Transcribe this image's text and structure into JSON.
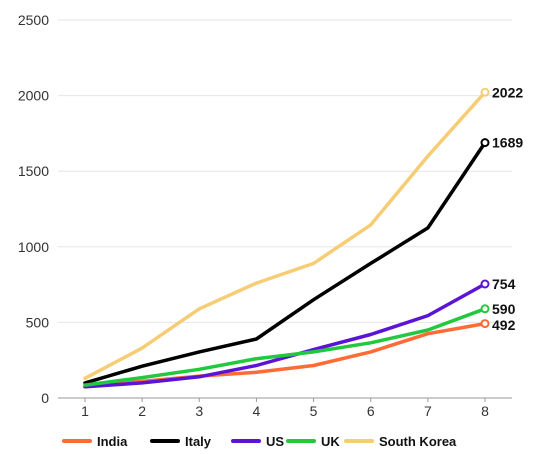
{
  "chart_data": {
    "type": "line",
    "title": "",
    "xlabel": "",
    "ylabel": "",
    "x": [
      1,
      2,
      3,
      4,
      5,
      6,
      7,
      8
    ],
    "xticks": [
      "1",
      "2",
      "3",
      "4",
      "5",
      "6",
      "7",
      "8"
    ],
    "yticks": [
      "0",
      "500",
      "1000",
      "1500",
      "2000",
      "2500"
    ],
    "ylim": [
      0,
      2500
    ],
    "grid": "horizontal",
    "legend_position": "bottom",
    "series": [
      {
        "name": "India",
        "color": "#ff6b35",
        "values": [
          75,
          110,
          145,
          170,
          215,
          305,
          425,
          492
        ],
        "end_label": "492"
      },
      {
        "name": "Italy",
        "color": "#000000",
        "values": [
          100,
          210,
          305,
          390,
          650,
          890,
          1125,
          1689
        ],
        "end_label": "1689"
      },
      {
        "name": "US",
        "color": "#5b14d6",
        "values": [
          75,
          100,
          140,
          215,
          320,
          420,
          545,
          754
        ],
        "end_label": "754"
      },
      {
        "name": "UK",
        "color": "#22c93e",
        "values": [
          85,
          135,
          190,
          260,
          305,
          365,
          450,
          590
        ],
        "end_label": "590"
      },
      {
        "name": "South Korea",
        "color": "#f6cd75",
        "values": [
          130,
          330,
          590,
          760,
          890,
          1145,
          1600,
          2022
        ],
        "end_label": "2022"
      }
    ]
  }
}
